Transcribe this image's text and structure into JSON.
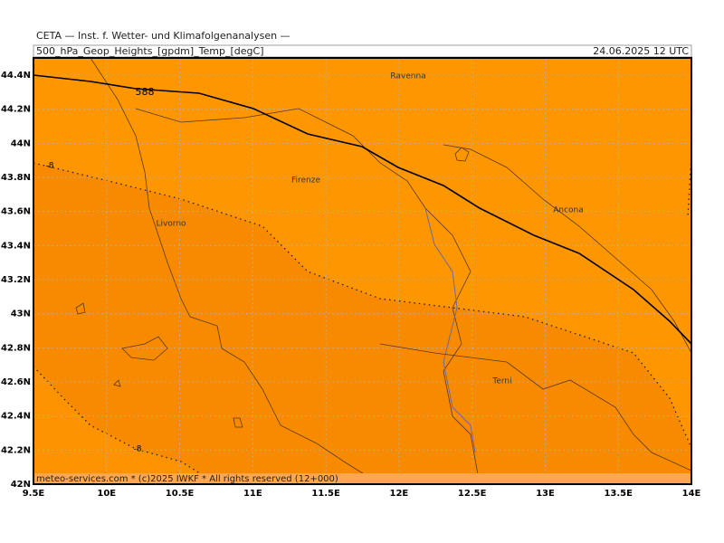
{
  "header": {
    "title": "CETA — Inst. f. Wetter- und Klimafolgenanalysen —",
    "product": "500_hPa_Geop_Heights_[gpdm]_Temp_[degC]",
    "valid_time": "24.06.2025 12 UTC"
  },
  "map": {
    "lon_ticks": [
      {
        "value": 9.5,
        "label": "9.5E"
      },
      {
        "value": 10,
        "label": "10E"
      },
      {
        "value": 10.5,
        "label": "10.5E"
      },
      {
        "value": 11,
        "label": "11E"
      },
      {
        "value": 11.5,
        "label": "11.5E"
      },
      {
        "value": 12,
        "label": "12E"
      },
      {
        "value": 12.5,
        "label": "12.5E"
      },
      {
        "value": 13,
        "label": "13E"
      },
      {
        "value": 13.5,
        "label": "13.5E"
      },
      {
        "value": 14,
        "label": "14E"
      }
    ],
    "lat_ticks": [
      {
        "value": 42,
        "label": "42N"
      },
      {
        "value": 42.2,
        "label": "42.2N"
      },
      {
        "value": 42.4,
        "label": "42.4N"
      },
      {
        "value": 42.6,
        "label": "42.6N"
      },
      {
        "value": 42.8,
        "label": "42.8N"
      },
      {
        "value": 43,
        "label": "43N"
      },
      {
        "value": 43.2,
        "label": "43.2N"
      },
      {
        "value": 43.4,
        "label": "43.4N"
      },
      {
        "value": 43.6,
        "label": "43.6N"
      },
      {
        "value": 43.8,
        "label": "43.8N"
      },
      {
        "value": 44,
        "label": "44N"
      },
      {
        "value": 44.2,
        "label": "44.2N"
      },
      {
        "value": 44.4,
        "label": "44.4N"
      }
    ],
    "cities": [
      "Ravenna",
      "Firenze",
      "Livorno",
      "Ancona",
      "Terni"
    ],
    "contour_labels": [
      "588",
      "-8",
      "-8"
    ]
  },
  "footer": "meteo-services.com * (c)2025 IWKF * All rights reserved (12+000)"
}
